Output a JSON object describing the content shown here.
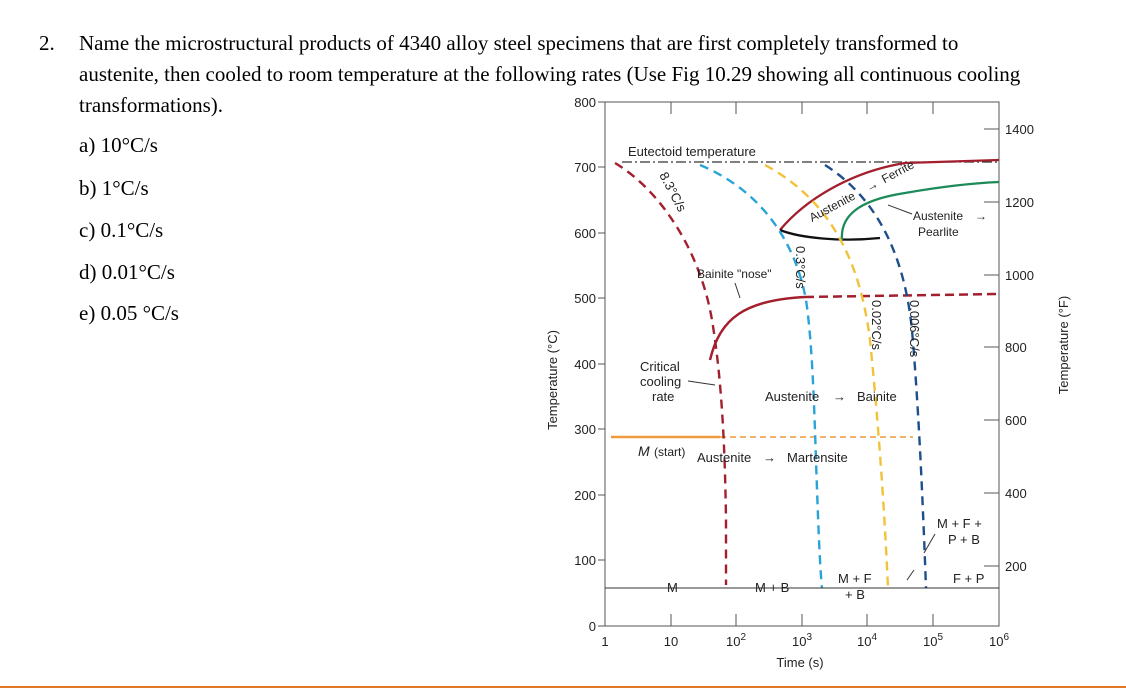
{
  "question": {
    "number": "2.",
    "lines": [
      "Name the microstructural products of 4340 alloy steel  specimens that are first completely transformed to",
      "austenite, then cooled to room temperature at the following rates (Use Fig 10.29 showing all continuous cooling",
      "transformations)."
    ],
    "parts": [
      "a) 10°C/s",
      "b) 1°C/s",
      "c) 0.1°C/s",
      "d) 0.01°C/s",
      "e) 0.05 °C/s"
    ]
  },
  "figure": {
    "y_left_label": "Temperature (°C)",
    "y_right_label": "Temperature (°F)",
    "x_label": "Time (s)",
    "y_left_ticks": [
      "800",
      "700",
      "600",
      "500",
      "400",
      "300",
      "200",
      "100",
      "0"
    ],
    "y_right_ticks": [
      "1400",
      "1200",
      "1000",
      "800",
      "600",
      "400",
      "200"
    ],
    "x_ticks": [
      {
        "base": "1",
        "exp": ""
      },
      {
        "base": "10",
        "exp": ""
      },
      {
        "base": "10",
        "exp": "2"
      },
      {
        "base": "10",
        "exp": "3"
      },
      {
        "base": "10",
        "exp": "4"
      },
      {
        "base": "10",
        "exp": "5"
      },
      {
        "base": "10",
        "exp": "6"
      }
    ],
    "labels": {
      "eutectoid": "Eutectoid temperature",
      "rate_83": "8.3°C/s",
      "rate_03": "0.3°C/s",
      "rate_002": "0.02°C/s",
      "rate_0006": "0.006°C/s",
      "austenite_ferrite_a": "Austenite",
      "austenite_ferrite_b": "Ferrite",
      "austenite_pearlite_a": "Austenite",
      "austenite_pearlite_b": "Pearlite",
      "bainite_nose": "Bainite \"nose\"",
      "critical_1": "Critical",
      "critical_2": "cooling",
      "critical_3": "rate",
      "aus_bainite_a": "Austenite",
      "aus_bainite_b": "Bainite",
      "m_start_a": "M",
      "m_start_b": "(start)",
      "aus_martensite_a": "Austenite",
      "aus_martensite_b": "Martensite",
      "mfpb_1": "M + F +",
      "mfpb_2": "P + B",
      "bottom_m": "M",
      "bottom_mb": "M + B",
      "bottom_mf_1": "M + F",
      "bottom_mf_2": "+ B",
      "bottom_fp": "F + P"
    },
    "colors": {
      "red": "#a31f2d",
      "blue": "#29a3d8",
      "yellow": "#f2c23a",
      "navy": "#1d4f8c",
      "green": "#1d8a5a",
      "orange": "#ef9a3c",
      "black": "#111111"
    }
  }
}
